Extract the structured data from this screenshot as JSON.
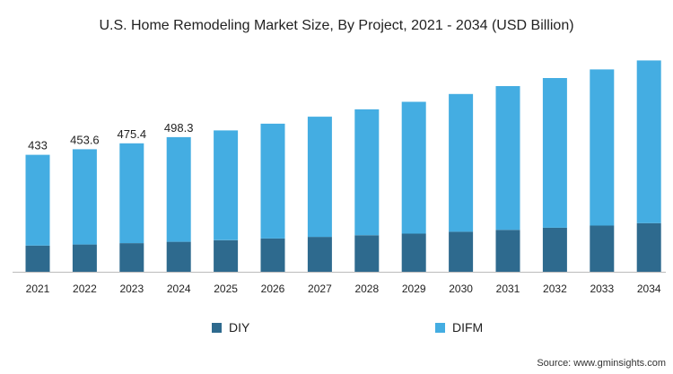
{
  "chart_data": {
    "type": "bar",
    "stacked": true,
    "title": "U.S. Home Remodeling Market Size, By Project, 2021 - 2034 (USD Billion)",
    "categories": [
      "2021",
      "2022",
      "2023",
      "2024",
      "2025",
      "2026",
      "2027",
      "2028",
      "2029",
      "2030",
      "2031",
      "2032",
      "2033",
      "2034"
    ],
    "series": [
      {
        "name": "DIY",
        "color": "#2e6a8e",
        "values": [
          97,
          101,
          106,
          111,
          117,
          123,
          129,
          135,
          141,
          148,
          155,
          163,
          171,
          180
        ]
      },
      {
        "name": "DIFM",
        "color": "#44ade2",
        "values": [
          336,
          352.6,
          369.4,
          387.3,
          406,
          425,
          445,
          466,
          488,
          510,
          532,
          554,
          578,
          602
        ]
      }
    ],
    "totals": [
      433,
      453.6,
      475.4,
      498.3,
      523,
      548,
      574,
      601,
      629,
      658,
      687,
      717,
      749,
      782
    ],
    "data_labels": [
      "433",
      "453.6",
      "475.4",
      "498.3"
    ],
    "ylim": [
      0,
      800
    ],
    "grid": false,
    "legend_position": "bottom"
  },
  "source": "Source: www.gminsights.com"
}
